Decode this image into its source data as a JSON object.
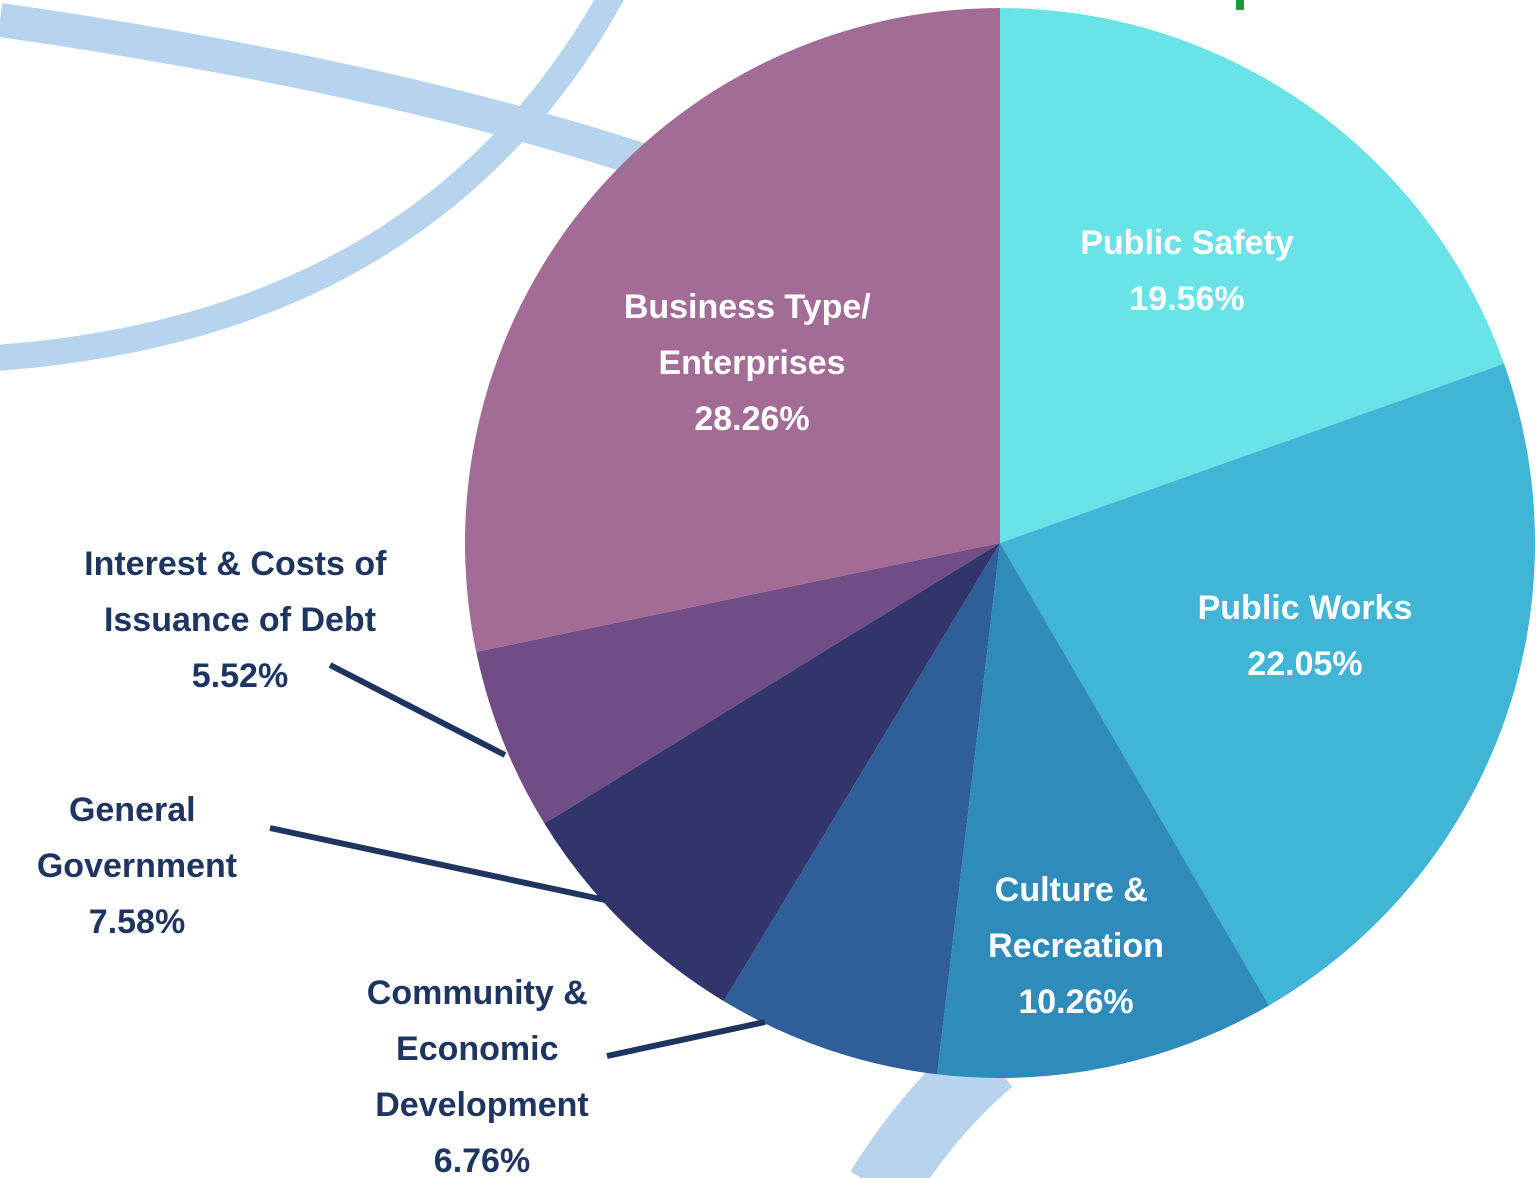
{
  "chart_data": {
    "type": "pie",
    "categories": [
      "Public Safety",
      "Public Works",
      "Culture &\nRecreation",
      "Community &\nEconomic\nDevelopment",
      "General\nGovernment",
      "Interest & Costs of\nIssuance of Debt",
      "Business Type/\nEnterprises"
    ],
    "values": [
      19.56,
      22.05,
      10.26,
      6.76,
      7.58,
      5.52,
      28.26
    ],
    "value_labels": [
      "19.56%",
      "22.05%",
      "10.26%",
      "6.76%",
      "7.58%",
      "5.52%",
      "28.26%"
    ],
    "colors": [
      "#6ae3e8",
      "#40b5d6",
      "#2e8bba",
      "#2f5f99",
      "#31356c",
      "#714d85",
      "#a26c96"
    ]
  }
}
